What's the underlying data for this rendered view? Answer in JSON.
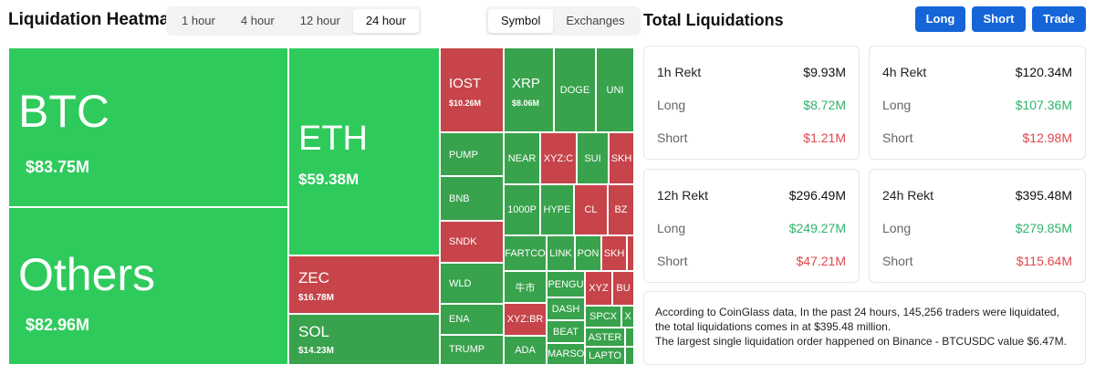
{
  "header": {
    "title": "Liquidation Heatmap",
    "time_options": [
      "1 hour",
      "4 hour",
      "12 hour",
      "24 hour"
    ],
    "active_time": "24 hour",
    "view_options": [
      "Symbol",
      "Exchanges"
    ],
    "active_view": "Symbol"
  },
  "colors": {
    "long_green": "#2fca5c",
    "mid_green": "#38a24c",
    "short_red": "#c6444a"
  },
  "heatmap": {
    "big": [
      {
        "symbol": "BTC",
        "value": "$83.75M"
      },
      {
        "symbol": "Others",
        "value": "$82.96M"
      },
      {
        "symbol": "ETH",
        "value": "$59.38M"
      },
      {
        "symbol": "ZEC",
        "value": "$16.78M"
      },
      {
        "symbol": "SOL",
        "value": "$14.23M"
      },
      {
        "symbol": "IOST",
        "value": "$10.26M"
      },
      {
        "symbol": "XRP",
        "value": "$8.06M"
      }
    ],
    "small": [
      "DOGE",
      "UNI",
      "PUMP",
      "NEAR",
      "XYZ:C",
      "SUI",
      "SKH",
      "BNB",
      "1000P",
      "HYPE",
      "CL",
      "BZ",
      "SNDK",
      "FARTCO",
      "LINK",
      "PON",
      "SKH",
      "WLD",
      "牛市",
      "PENGU",
      "XYZ",
      "BU",
      "ENA",
      "XYZ:BR",
      "DASH",
      "SPCX",
      "X",
      "TRUMP",
      "ADA",
      "BEAT",
      "ASTER",
      "MARSO",
      "LAPTO"
    ]
  },
  "panel": {
    "title": "Total Liquidations",
    "buttons": {
      "long": "Long",
      "short": "Short",
      "trade": "Trade"
    },
    "long_label": "Long",
    "short_label": "Short",
    "cards": [
      {
        "label": "1h Rekt",
        "total": "$9.93M",
        "long": "$8.72M",
        "short": "$1.21M"
      },
      {
        "label": "4h Rekt",
        "total": "$120.34M",
        "long": "$107.36M",
        "short": "$12.98M"
      },
      {
        "label": "12h Rekt",
        "total": "$296.49M",
        "long": "$249.27M",
        "short": "$47.21M"
      },
      {
        "label": "24h Rekt",
        "total": "$395.48M",
        "long": "$279.85M",
        "short": "$115.64M"
      }
    ],
    "info": {
      "line1": "According to CoinGlass data, In the past 24 hours, 145,256 traders were liquidated, the total liquidations comes in at $395.48 million.",
      "line2": "The largest single liquidation order happened on Binance - BTCUSDC value $6.47M."
    }
  }
}
